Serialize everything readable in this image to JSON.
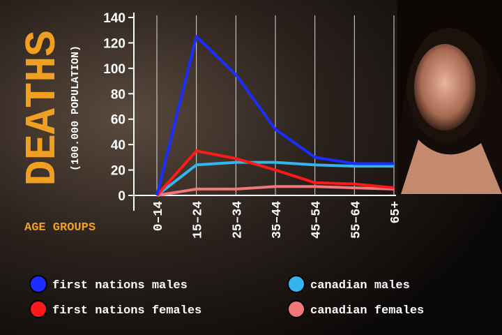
{
  "chart_data": {
    "type": "line",
    "title": "DEATHS",
    "y_label": "(100.000 POPULATION)",
    "x_label": "AGE GROUPS",
    "categories": [
      "0–14",
      "15–24",
      "25–34",
      "35–44",
      "45–54",
      "55–64",
      "65+"
    ],
    "series": [
      {
        "name": "first nations males",
        "color": "#1a2eff",
        "values": [
          0,
          125,
          95,
          52,
          30,
          25,
          25
        ]
      },
      {
        "name": "first nations females",
        "color": "#ff1a1a",
        "values": [
          0,
          35,
          29,
          20,
          10,
          9,
          6
        ]
      },
      {
        "name": "canadian males",
        "color": "#33b5f0",
        "values": [
          0,
          24,
          26,
          26,
          24,
          23,
          23
        ]
      },
      {
        "name": "canadian females",
        "color": "#f07878",
        "values": [
          0,
          5,
          5,
          7,
          7,
          6,
          5
        ]
      }
    ],
    "ylim": [
      0,
      140
    ],
    "yticks": [
      0,
      20,
      40,
      60,
      80,
      100,
      120,
      140
    ],
    "grid": true,
    "legend": "bottom"
  }
}
